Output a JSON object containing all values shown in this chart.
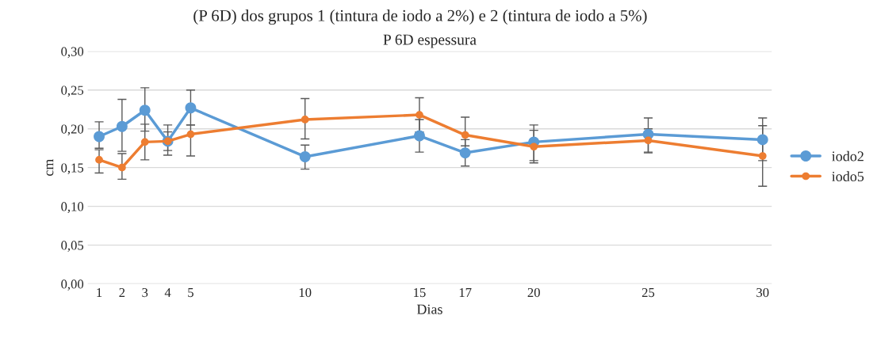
{
  "chart_data": {
    "type": "line",
    "title": "P 6D espessura",
    "xlabel": "Dias",
    "ylabel": "cm",
    "annotations": [
      "(P 6D) dos grupos 1 (tintura de iodo a 2%) e 2 (tintura de iodo a 5%)"
    ],
    "x": [
      1,
      2,
      3,
      4,
      5,
      10,
      15,
      17,
      20,
      25,
      30
    ],
    "series": [
      {
        "name": "iodo2",
        "color": "#5b9bd5",
        "values": [
          0.19,
          0.203,
          0.224,
          0.184,
          0.227,
          0.164,
          0.191,
          0.169,
          0.183,
          0.193,
          0.186
        ],
        "errors": [
          [
            0.175,
            0.209
          ],
          [
            0.171,
            0.238
          ],
          [
            0.197,
            0.253
          ],
          [
            0.166,
            0.205
          ],
          [
            0.205,
            0.25
          ],
          [
            0.148,
            0.179
          ],
          [
            0.17,
            0.212
          ],
          [
            0.152,
            0.186
          ],
          [
            0.156,
            0.205
          ],
          [
            0.17,
            0.214
          ],
          [
            0.159,
            0.214
          ]
        ]
      },
      {
        "name": "iodo5",
        "color": "#ed7d31",
        "values": [
          0.16,
          0.15,
          0.183,
          0.184,
          0.193,
          0.212,
          0.218,
          0.192,
          0.177,
          0.185,
          0.165
        ],
        "errors": [
          [
            0.143,
            0.173
          ],
          [
            0.135,
            0.168
          ],
          [
            0.16,
            0.206
          ],
          [
            0.172,
            0.196
          ],
          [
            0.165,
            0.205
          ],
          [
            0.187,
            0.239
          ],
          [
            0.196,
            0.24
          ],
          [
            0.178,
            0.215
          ],
          [
            0.159,
            0.198
          ],
          [
            0.169,
            0.2
          ],
          [
            0.126,
            0.204
          ]
        ]
      }
    ],
    "xlim": [
      0.5,
      30.4
    ],
    "xticks": [
      1,
      2,
      3,
      4,
      5,
      10,
      15,
      17,
      20,
      25,
      30
    ],
    "ylim": [
      0,
      0.3
    ],
    "yticks": [
      {
        "value": 0,
        "label": "0,00"
      },
      {
        "value": 0.05,
        "label": "0,05"
      },
      {
        "value": 0.1,
        "label": "0,10"
      },
      {
        "value": 0.15,
        "label": "0,15"
      },
      {
        "value": 0.2,
        "label": "0,20"
      },
      {
        "value": 0.25,
        "label": "0,25"
      },
      {
        "value": 0.3,
        "label": "0,30"
      }
    ],
    "grid": "y",
    "legend": "right",
    "marker": "circle",
    "line_style": "solid"
  }
}
